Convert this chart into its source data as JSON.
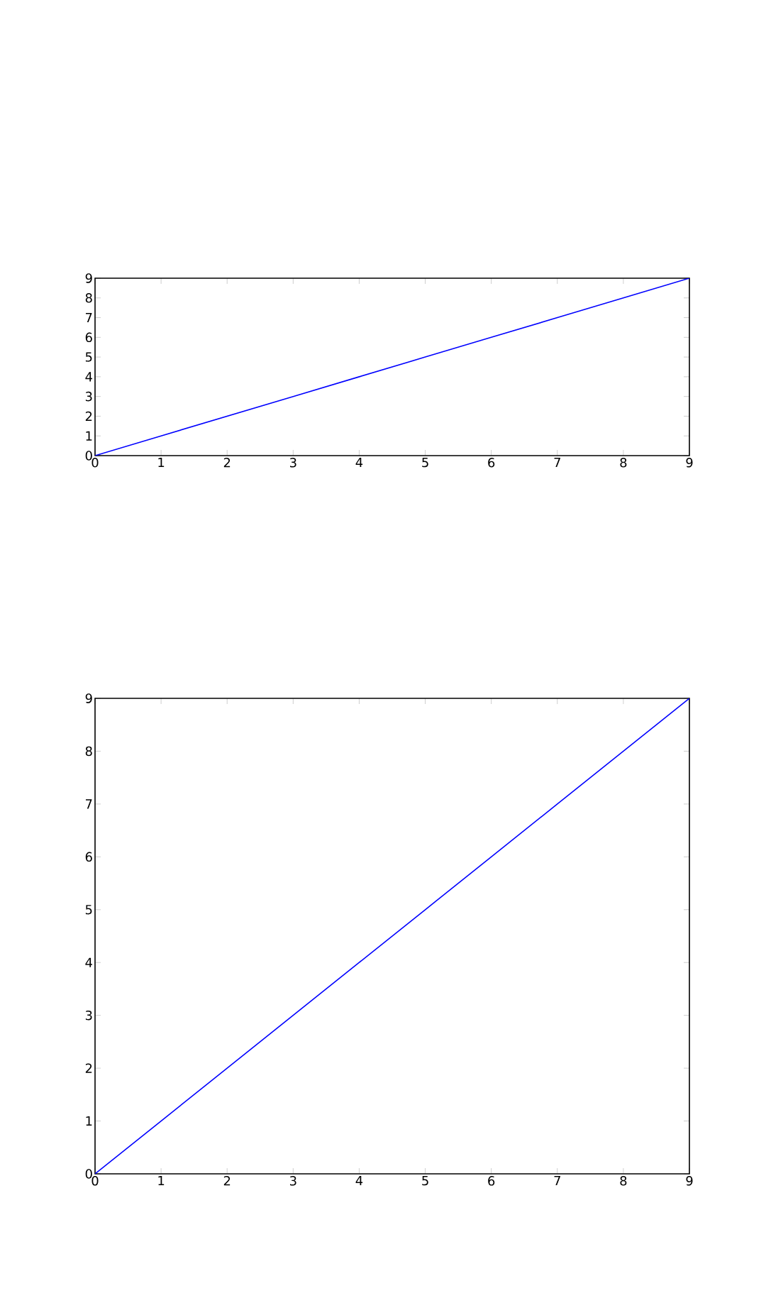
{
  "chart_data": [
    {
      "type": "line",
      "x": [
        0,
        1,
        2,
        3,
        4,
        5,
        6,
        7,
        8,
        9
      ],
      "values": [
        0,
        1,
        2,
        3,
        4,
        5,
        6,
        7,
        8,
        9
      ],
      "color": "#0000ff",
      "xlim": [
        0,
        9
      ],
      "ylim": [
        0,
        9
      ],
      "xticks": [
        0,
        1,
        2,
        3,
        4,
        5,
        6,
        7,
        8,
        9
      ],
      "yticks": [
        0,
        1,
        2,
        3,
        4,
        5,
        6,
        7,
        8,
        9
      ]
    },
    {
      "type": "line",
      "x": [
        0,
        1,
        2,
        3,
        4,
        5,
        6,
        7,
        8,
        9
      ],
      "values": [
        0,
        1,
        2,
        3,
        4,
        5,
        6,
        7,
        8,
        9
      ],
      "color": "#0000ff",
      "xlim": [
        0,
        9
      ],
      "ylim": [
        0,
        9
      ],
      "xticks": [
        0,
        1,
        2,
        3,
        4,
        5,
        6,
        7,
        8,
        9
      ],
      "yticks": [
        0,
        1,
        2,
        3,
        4,
        5,
        6,
        7,
        8,
        9
      ]
    }
  ]
}
